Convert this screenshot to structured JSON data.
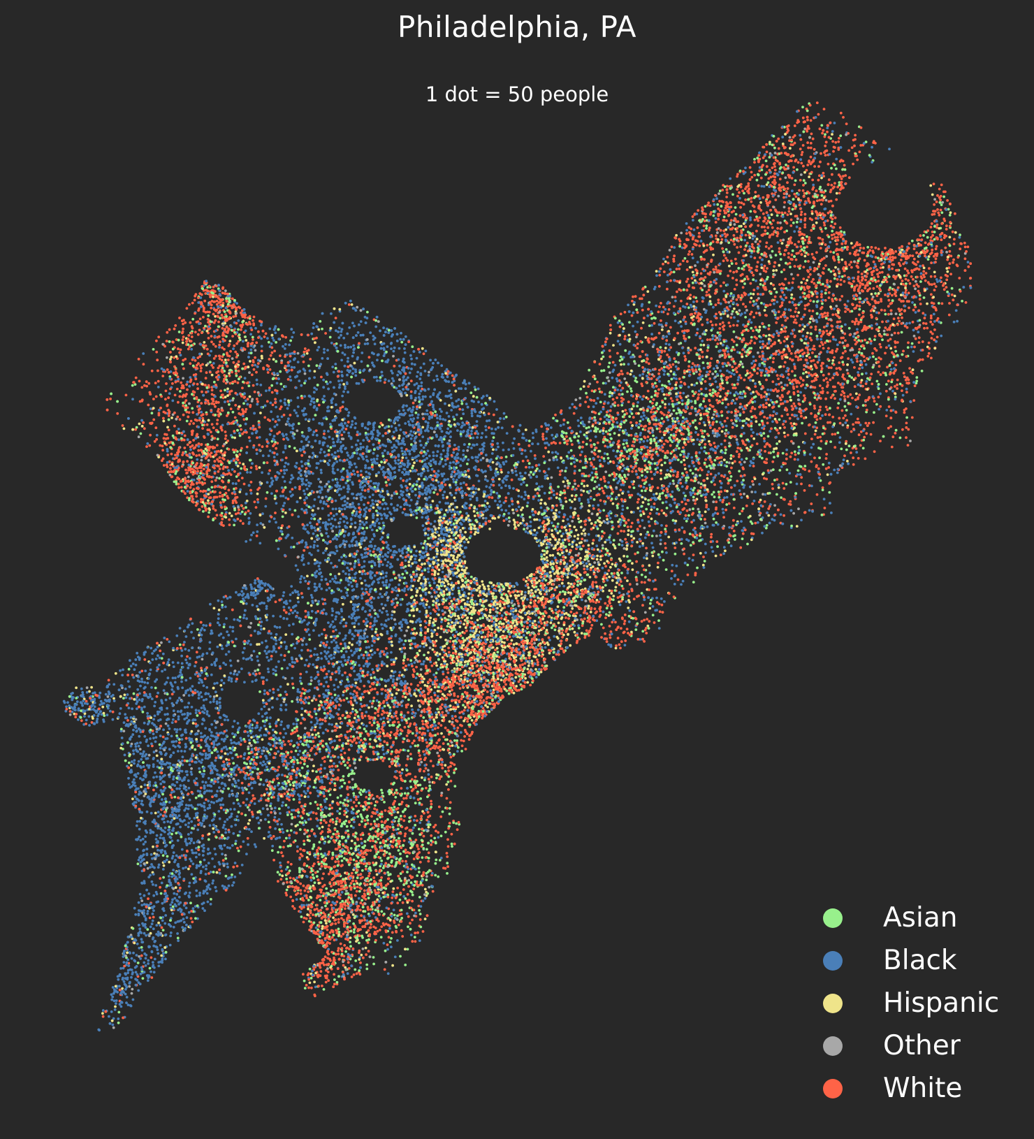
{
  "title": "Philadelphia, PA",
  "subtitle": "1 dot = 50 people",
  "colors": {
    "background": "#282828",
    "text": "#ffffff"
  },
  "legend": {
    "placement": "bottom-right",
    "items": [
      {
        "label": "Asian",
        "color": "#98f08c"
      },
      {
        "label": "Black",
        "color": "#4a7fb8"
      },
      {
        "label": "Hispanic",
        "color": "#efe48a"
      },
      {
        "label": "Other",
        "color": "#a8a8a8"
      },
      {
        "label": "White",
        "color": "#ff6347"
      }
    ]
  },
  "chart_data": {
    "type": "scatter",
    "title": "Philadelphia, PA",
    "subtitle": "1 dot = 50 people",
    "xlabel": "",
    "ylabel": "",
    "grid": false,
    "axes_visible": false,
    "legend_placement": "bottom-right",
    "dot_value_people": 50,
    "series": [
      {
        "name": "Asian",
        "color": "#98f08c"
      },
      {
        "name": "Black",
        "color": "#4a7fb8"
      },
      {
        "name": "Hispanic",
        "color": "#efe48a"
      },
      {
        "name": "Other",
        "color": "#a8a8a8"
      },
      {
        "name": "White",
        "color": "#ff6347"
      }
    ]
  }
}
